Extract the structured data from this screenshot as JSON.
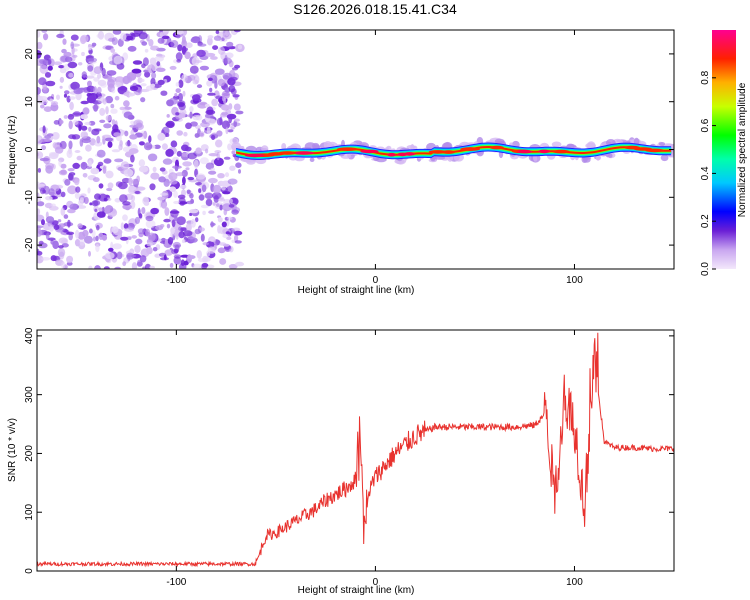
{
  "title": "S126.2026.018.15.41.C34",
  "chart_data": [
    {
      "type": "heatmap",
      "name": "spectrogram",
      "xlabel": "Height of straight line (km)",
      "ylabel": "Frequency (Hz)",
      "xlim": [
        -170,
        150
      ],
      "ylim": [
        -25,
        25
      ],
      "xticks": [
        -100,
        0,
        100
      ],
      "yticks": [
        -20,
        -10,
        0,
        10,
        20
      ],
      "noise_region_x": [
        -170,
        -68
      ],
      "ridge_x": [
        -70,
        150
      ],
      "ridge_frequency_hz": 0,
      "colorbar": {
        "label": "Normalized spectral amplitude",
        "range": [
          0,
          1
        ],
        "ticks": [
          "0.0",
          "0.2",
          "0.4",
          "0.6",
          "0.8"
        ]
      }
    },
    {
      "type": "line",
      "name": "snr",
      "xlabel": "Height of straight line (km)",
      "ylabel": "SNR (10 * v/v)",
      "xlim": [
        -170,
        150
      ],
      "ylim": [
        0,
        410
      ],
      "xticks": [
        -100,
        0,
        100
      ],
      "yticks": [
        0,
        100,
        200,
        300,
        400
      ],
      "color": "#e8322e",
      "series": [
        {
          "name": "SNR",
          "x": [
            -170,
            -60,
            -55,
            -50,
            -45,
            -40,
            -35,
            -30,
            -25,
            -20,
            -15,
            -10,
            -8,
            -5,
            -3,
            0,
            5,
            10,
            20,
            30,
            40,
            50,
            60,
            70,
            80,
            86,
            90,
            95,
            100,
            105,
            110,
            115,
            120,
            130,
            140,
            150
          ],
          "y": [
            12,
            12,
            60,
            65,
            75,
            85,
            95,
            105,
            120,
            130,
            140,
            155,
            250,
            60,
            140,
            160,
            180,
            200,
            230,
            245,
            245,
            245,
            245,
            245,
            248,
            270,
            120,
            300,
            250,
            110,
            360,
            220,
            210,
            210,
            208,
            208
          ]
        }
      ]
    }
  ]
}
